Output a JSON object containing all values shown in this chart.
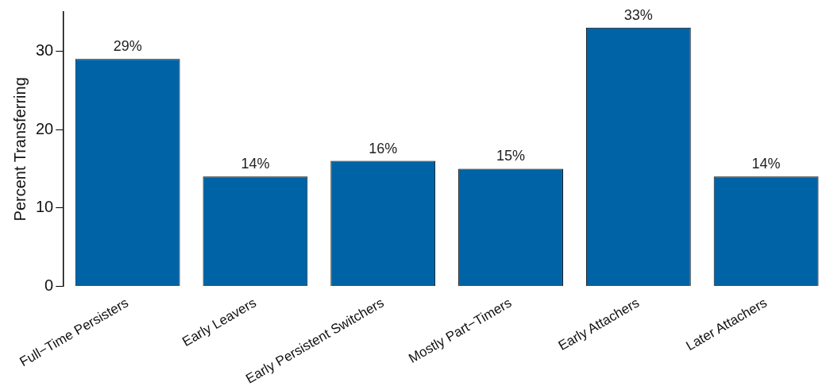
{
  "chart_data": {
    "type": "bar",
    "ylabel": "Percent Transferring",
    "categories": [
      "Full−Time Persisters",
      "Early Leavers",
      "Early Persistent Switchers",
      "Mostly Part−Timers",
      "Early Attachers",
      "Later Attachers"
    ],
    "values": [
      29,
      14,
      16,
      15,
      33,
      14
    ],
    "value_labels": [
      "29%",
      "14%",
      "16%",
      "15%",
      "33%",
      "14%"
    ],
    "color": "#0063a6",
    "ylim": [
      0,
      35
    ],
    "yticks": [
      0,
      10,
      20,
      30
    ],
    "grid": false,
    "legend": false
  }
}
